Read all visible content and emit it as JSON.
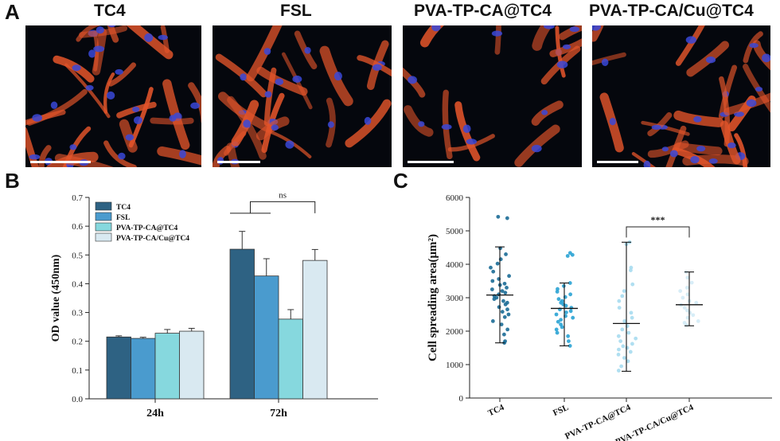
{
  "panels": {
    "a_label": "A",
    "b_label": "B",
    "c_label": "C"
  },
  "micrographs": [
    {
      "title": "TC4",
      "density": 1.0
    },
    {
      "title": "FSL",
      "density": 0.75
    },
    {
      "title": "PVA-TP-CA@TC4",
      "density": 0.55
    },
    {
      "title": "PVA-TP-CA/Cu@TC4",
      "density": 0.9
    }
  ],
  "colors": {
    "tc4": "#2e6283",
    "fsl": "#4a9bce",
    "pva": "#86d8de",
    "pvacu": "#d9e9f1",
    "cell_red": "#e2542a",
    "nucleus_blue": "#3a48d8"
  },
  "chart_data": [
    {
      "type": "bar",
      "ylabel": "OD value (450nm)",
      "ylim": [
        0.0,
        0.7
      ],
      "yticks": [
        "0.0",
        "0.1",
        "0.2",
        "0.3",
        "0.4",
        "0.5",
        "0.6",
        "0.7"
      ],
      "categories": [
        "24h",
        "72h"
      ],
      "series": [
        {
          "name": "TC4",
          "values": [
            0.215,
            0.52
          ],
          "errors": [
            0.004,
            0.062
          ]
        },
        {
          "name": "FSL",
          "values": [
            0.21,
            0.427
          ],
          "errors": [
            0.004,
            0.06
          ]
        },
        {
          "name": "PVA-TP-CA@TC4",
          "values": [
            0.228,
            0.277
          ],
          "errors": [
            0.013,
            0.033
          ]
        },
        {
          "name": "PVA-TP-CA/Cu@TC4",
          "values": [
            0.235,
            0.481
          ],
          "errors": [
            0.01,
            0.038
          ]
        }
      ],
      "annotation": "ns",
      "legend": "top-left"
    },
    {
      "type": "scatter",
      "ylabel": "Cell spreading area(μm²)",
      "ylim": [
        0,
        6000
      ],
      "yticks": [
        "0",
        "1000",
        "2000",
        "3000",
        "4000",
        "5000",
        "6000"
      ],
      "categories": [
        "TC4",
        "FSL",
        "PVA-TP-CA@TC4",
        "PVA-TP-CA/Cu@TC4"
      ],
      "summary": [
        {
          "mean": 3080,
          "sd_low": 1650,
          "sd_high": 4520
        },
        {
          "mean": 2680,
          "sd_low": 1560,
          "sd_high": 3440
        },
        {
          "mean": 2230,
          "sd_low": 800,
          "sd_high": 4660
        },
        {
          "mean": 2790,
          "sd_low": 2160,
          "sd_high": 3770
        }
      ],
      "points": [
        [
          5420,
          5380,
          4480,
          4300,
          4150,
          4020,
          3900,
          3780,
          3650,
          3560,
          3500,
          3420,
          3380,
          3300,
          3250,
          3200,
          3150,
          3100,
          3050,
          3000,
          2960,
          2900,
          2850,
          2800,
          2720,
          2650,
          2580,
          2500,
          2420,
          2300,
          2200,
          2050,
          1900,
          1700,
          1650
        ],
        [
          4340,
          4280,
          4250,
          3440,
          3350,
          3260,
          3180,
          3100,
          3020,
          2960,
          2900,
          2850,
          2800,
          2760,
          2700,
          2650,
          2600,
          2560,
          2500,
          2450,
          2400,
          2340,
          2280,
          2200,
          2120,
          2050,
          1950,
          1850,
          1700,
          1560
        ],
        [
          4660,
          4600,
          3900,
          3820,
          3400,
          3200,
          3050,
          2900,
          2700,
          2550,
          2400,
          2300,
          2150,
          2050,
          1950,
          1850,
          1780,
          1700,
          1620,
          1550,
          1500,
          1450,
          1380,
          1300,
          1200,
          1100,
          950,
          820
        ],
        [
          3770,
          3600,
          3450,
          3300,
          3200,
          3100,
          3000,
          2900,
          2850,
          2780,
          2700,
          2620,
          2550,
          2480,
          2400,
          2300,
          2250,
          2180
        ]
      ],
      "point_colors": [
        "#1b6b96",
        "#2aa3d4",
        "#a7dbef",
        "#d3ebf6"
      ],
      "annotation": "***"
    }
  ]
}
